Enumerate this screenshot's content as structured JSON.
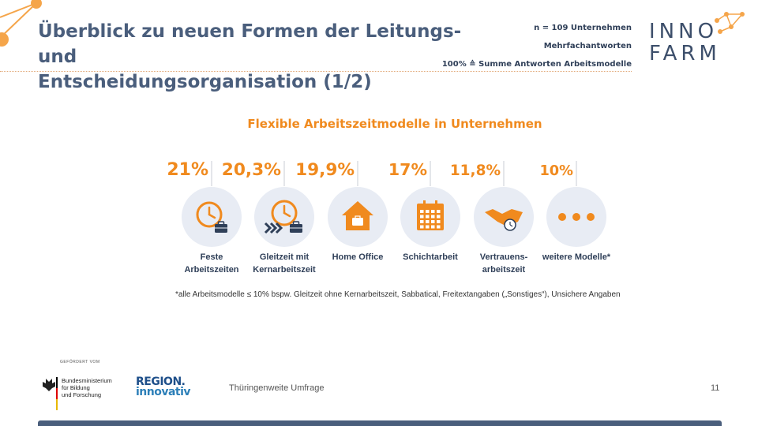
{
  "header": {
    "title_line1": "Überblick zu neuen Formen der Leitungs- und",
    "title_line2": "Entscheidungsorganisation (1/2)",
    "meta": [
      "n = 109 Unternehmen",
      "Mehrfachantworten",
      "100% ≙ Summe Antworten Arbeitsmodelle"
    ],
    "logo_line1": "INNO",
    "logo_line2": "FARM"
  },
  "colors": {
    "accent": "#f08a1e",
    "title": "#4a5e7c",
    "circle": "#e8ecf4",
    "navy": "#2f3f58"
  },
  "chart_data": {
    "type": "bar",
    "title": "Flexible Arbeitszeitmodelle in Unternehmen",
    "categories": [
      "Feste Arbeitszeiten",
      "Gleitzeit mit Kernarbeitszeit",
      "Home Office",
      "Schichtarbeit",
      "Vertrauens-arbeitszeit",
      "weitere Modelle*"
    ],
    "values": [
      21,
      20.3,
      19.9,
      17,
      11.8,
      10
    ],
    "value_labels": [
      "21%",
      "20,3%",
      "19,9%",
      "17%",
      "11,8%",
      "10%"
    ],
    "category_lines": [
      [
        "Feste",
        "Arbeitszeiten"
      ],
      [
        "Gleitzeit mit",
        "Kernarbeitszeit"
      ],
      [
        "Home Office"
      ],
      [
        "Schichtarbeit"
      ],
      [
        "Vertrauens-",
        "arbeitszeit"
      ],
      [
        "weitere Modelle*"
      ]
    ],
    "icons": [
      "clock-briefcase-icon",
      "clock-arrows-briefcase-icon",
      "house-icon",
      "calendar-icon",
      "handshake-clock-icon",
      "ellipsis-icon"
    ]
  },
  "footnote": "*alle Arbeitsmodelle ≤ 10% bspw. Gleitzeit ohne Kernarbeitszeit, Sabbatical, Freitextangaben („Sonstiges“), Unsichere Angaben",
  "footer": {
    "funded_by": "GEFÖRDERT VOM",
    "bmbf_lines": [
      "Bundesministerium",
      "für Bildung",
      "und Forschung"
    ],
    "region_line1": "REGION.",
    "region_line2": "innovativ",
    "survey": "Thüringenweite Umfrage",
    "page_number": "11"
  }
}
